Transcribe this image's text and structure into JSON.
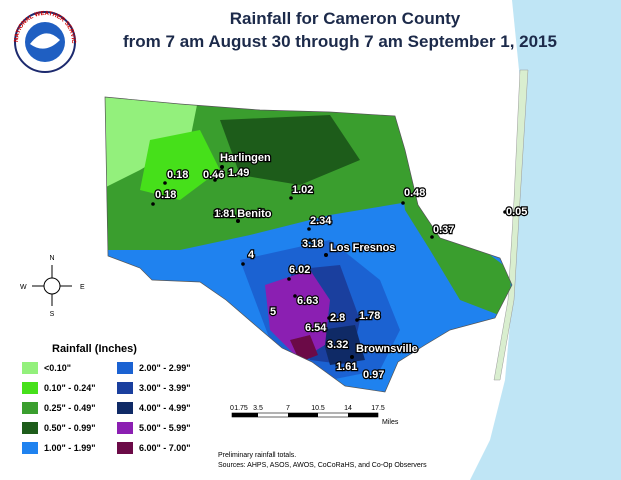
{
  "header": {
    "title_line1": "Rainfall for Cameron County",
    "title_line2": "from 7 am August 30 through 7 am September 1, 2015"
  },
  "logo": {
    "text": "NATIONAL WEATHER SERVICE"
  },
  "cities": [
    "Harlingen",
    "San Benito",
    "Los Fresnos",
    "Brownsville"
  ],
  "observations": [
    "0.18",
    "0.46",
    "1.49",
    "0.18",
    "1.02",
    "0.48",
    "0.05",
    "1.81",
    "0.37",
    "2.34",
    "3.18",
    "4",
    "6.02",
    "6.63",
    "5",
    "2.8",
    "1.78",
    "6.54",
    "3.32",
    "1.61",
    "0.97"
  ],
  "compass": {
    "north": "N",
    "south": "S",
    "east": "E",
    "west": "W"
  },
  "legend": {
    "title": "Rainfall (Inches)",
    "items": [
      {
        "label": "<0.10\"",
        "color": "#93f07c"
      },
      {
        "label": "0.10\" - 0.24\"",
        "color": "#46e01a"
      },
      {
        "label": "0.25\" - 0.49\"",
        "color": "#3a9e2e"
      },
      {
        "label": "0.50\" - 0.99\"",
        "color": "#1d5c1a"
      },
      {
        "label": "1.00\" - 1.99\"",
        "color": "#1f82ef"
      },
      {
        "label": "2.00\" - 2.99\"",
        "color": "#1b62d2"
      },
      {
        "label": "3.00\" - 3.99\"",
        "color": "#1a3f9e"
      },
      {
        "label": "4.00\" - 4.99\"",
        "color": "#0f2a66"
      },
      {
        "label": "5.00\" - 5.99\"",
        "color": "#8b1fb2"
      },
      {
        "label": "6.00\" - 7.00\"",
        "color": "#6b0a47"
      }
    ]
  },
  "scale": {
    "ticks": [
      "0",
      "1.75",
      "3.5",
      "7",
      "10.5",
      "14",
      "17.5"
    ],
    "unit": "Miles"
  },
  "notes": [
    "Preliminary rainfall totals.",
    "Sources: AHPS, ASOS, AWOS, CoCoRaHS, and Co-Op Observers"
  ]
}
